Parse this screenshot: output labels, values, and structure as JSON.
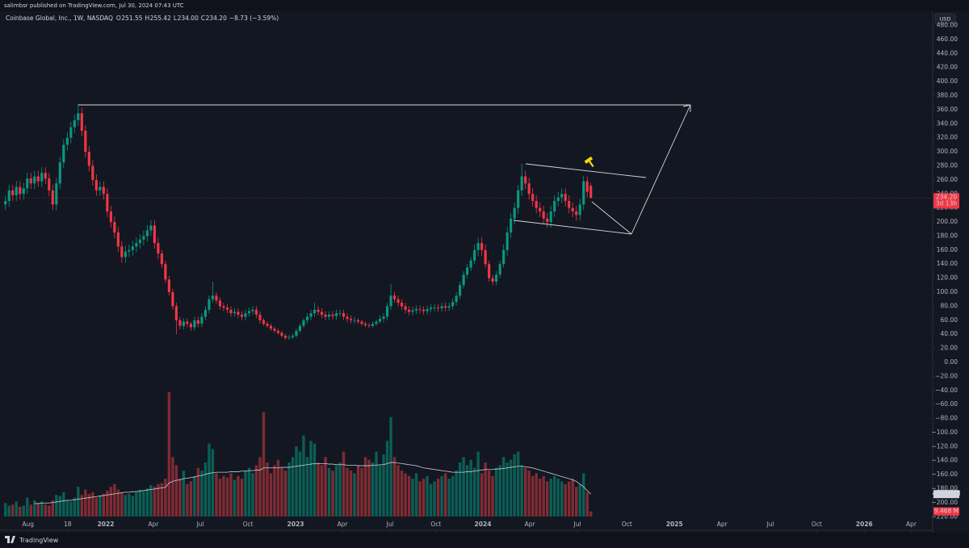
{
  "header": "salimbsr published on TradingView.com, Jul 30, 2024 07:43 UTC",
  "currency": "USD",
  "footer": "TradingView",
  "chart_data": {
    "type": "candlestick",
    "legend": {
      "symbol": "Coinbase Global, Inc., 1W, NASDAQ",
      "ohlc": [
        {
          "key": "O",
          "value": "251.55"
        },
        {
          "key": "H",
          "value": "255.42"
        },
        {
          "key": "L",
          "value": "234.00"
        },
        {
          "key": "C",
          "value": "234.20"
        }
      ],
      "change": "−8.73 (−3.59%)"
    },
    "xlim": [
      -1.5,
      255
    ],
    "xticks": [
      {
        "value": 6.2,
        "label": "Aug"
      },
      {
        "value": 17.1,
        "label": "18"
      },
      {
        "value": 27.6,
        "label": "2022"
      },
      {
        "value": 40.7,
        "label": "Apr"
      },
      {
        "value": 53.6,
        "label": "Jul"
      },
      {
        "value": 66.7,
        "label": "Oct"
      },
      {
        "value": 79.8,
        "label": "2023"
      },
      {
        "value": 92.7,
        "label": "Apr"
      },
      {
        "value": 105.8,
        "label": "Jul"
      },
      {
        "value": 118.4,
        "label": "Oct"
      },
      {
        "value": 131.3,
        "label": "2024"
      },
      {
        "value": 144.2,
        "label": "Apr"
      },
      {
        "value": 157.3,
        "label": "Jul"
      },
      {
        "value": 170.9,
        "label": "Oct"
      },
      {
        "value": 184,
        "label": "2025"
      },
      {
        "value": 197.1,
        "label": "Apr"
      },
      {
        "value": 210.4,
        "label": "Jul"
      },
      {
        "value": 223.1,
        "label": "Oct"
      },
      {
        "value": 236.2,
        "label": "2026"
      },
      {
        "value": 249.1,
        "label": "Apr"
      }
    ],
    "ylim": [
      -239.2,
      500.2
    ],
    "yticks": [
      {
        "value": -220,
        "label": "−220.00"
      },
      {
        "value": -200,
        "label": "−200.00"
      },
      {
        "value": -180,
        "label": "−180.00"
      },
      {
        "value": -160,
        "label": "−160.00"
      },
      {
        "value": -140,
        "label": "−140.00"
      },
      {
        "value": -120,
        "label": "−120.00"
      },
      {
        "value": -100,
        "label": "−100.00"
      },
      {
        "value": -80,
        "label": "−80.00"
      },
      {
        "value": -60,
        "label": "−60.00"
      },
      {
        "value": -40,
        "label": "−40.00"
      },
      {
        "value": -20,
        "label": "−20.00"
      },
      {
        "value": 0,
        "label": "0.00"
      },
      {
        "value": 20,
        "label": "20.00"
      },
      {
        "value": 40,
        "label": "40.00"
      },
      {
        "value": 60,
        "label": "60.00"
      },
      {
        "value": 80,
        "label": "80.00"
      },
      {
        "value": 100,
        "label": "100.00"
      },
      {
        "value": 120,
        "label": "120.00"
      },
      {
        "value": 140,
        "label": "140.00"
      },
      {
        "value": 160,
        "label": "160.00"
      },
      {
        "value": 180,
        "label": "180.00"
      },
      {
        "value": 200,
        "label": "200.00"
      },
      {
        "value": 220,
        "label": "220.00"
      },
      {
        "value": 240,
        "label": "240.00"
      },
      {
        "value": 260,
        "label": "260.00"
      },
      {
        "value": 280,
        "label": "280.00"
      },
      {
        "value": 300,
        "label": "300.00"
      },
      {
        "value": 320,
        "label": "320.00"
      },
      {
        "value": 340,
        "label": "340.00"
      },
      {
        "value": 360,
        "label": "360.00"
      },
      {
        "value": 380,
        "label": "380.00"
      },
      {
        "value": 400,
        "label": "400.00"
      },
      {
        "value": 420,
        "label": "420.00"
      },
      {
        "value": 440,
        "label": "440.00"
      },
      {
        "value": 460,
        "label": "460.00"
      },
      {
        "value": 480,
        "label": "480.00"
      }
    ],
    "grid": false,
    "up_color": "#089981",
    "down_color": "#f23645",
    "volume_up_color": "#0b5e55",
    "volume_down_color": "#802b33",
    "ma_color": "#c9cbd2",
    "candles": {
      "open": [
        225,
        230,
        245,
        238,
        250,
        240,
        248,
        262,
        255,
        265,
        258,
        270,
        262,
        245,
        225,
        255,
        285,
        310,
        320,
        335,
        345,
        355,
        330,
        300,
        280,
        260,
        245,
        250,
        240,
        215,
        200,
        185,
        165,
        150,
        158,
        160,
        165,
        170,
        175,
        180,
        188,
        195,
        170,
        155,
        140,
        118,
        100,
        80,
        60,
        52,
        58,
        55,
        50,
        60,
        55,
        65,
        75,
        90,
        95,
        88,
        80,
        78,
        75,
        70,
        72,
        68,
        65,
        70,
        73,
        75,
        68,
        60,
        55,
        52,
        48,
        45,
        42,
        38,
        35,
        36,
        38,
        45,
        52,
        60,
        65,
        70,
        75,
        72,
        68,
        65,
        68,
        66,
        70,
        70,
        65,
        62,
        60,
        60,
        58,
        55,
        53,
        52,
        55,
        58,
        62,
        65,
        80,
        95,
        90,
        85,
        80,
        75,
        72,
        74,
        76,
        75,
        73,
        76,
        78,
        78,
        77,
        80,
        78,
        80,
        86,
        95,
        110,
        125,
        135,
        145,
        160,
        170,
        160,
        140,
        120,
        115,
        125,
        140,
        160,
        185,
        205,
        220,
        245,
        265,
        255,
        240,
        230,
        220,
        215,
        205,
        200,
        215,
        230,
        235,
        240,
        230,
        220,
        215,
        210,
        225,
        258,
        251.55
      ],
      "high": [
        238,
        253,
        253,
        258,
        258,
        256,
        270,
        270,
        273,
        273,
        278,
        278,
        270,
        253,
        263,
        293,
        318,
        328,
        343,
        353,
        368,
        363,
        338,
        308,
        288,
        268,
        258,
        258,
        248,
        223,
        208,
        193,
        173,
        166,
        168,
        173,
        178,
        183,
        188,
        196,
        203,
        203,
        178,
        160,
        145,
        123,
        105,
        85,
        65,
        63,
        63,
        58,
        65,
        65,
        70,
        80,
        95,
        115,
        100,
        93,
        85,
        83,
        80,
        77,
        77,
        73,
        75,
        78,
        80,
        80,
        73,
        63,
        58,
        55,
        51,
        48,
        45,
        41,
        39,
        41,
        48,
        55,
        63,
        70,
        75,
        85,
        80,
        77,
        73,
        73,
        73,
        75,
        75,
        75,
        70,
        67,
        65,
        63,
        61,
        58,
        56,
        58,
        61,
        67,
        70,
        85,
        112,
        100,
        95,
        90,
        85,
        80,
        79,
        81,
        81,
        80,
        81,
        83,
        83,
        83,
        85,
        85,
        85,
        91,
        100,
        115,
        130,
        140,
        150,
        168,
        178,
        178,
        168,
        145,
        125,
        130,
        145,
        168,
        193,
        213,
        228,
        253,
        283,
        273,
        263,
        248,
        238,
        228,
        223,
        213,
        223,
        238,
        243,
        248,
        248,
        238,
        228,
        223,
        233,
        266,
        265,
        255.42
      ],
      "low": [
        217,
        222,
        230,
        230,
        232,
        232,
        240,
        247,
        247,
        250,
        250,
        254,
        237,
        217,
        217,
        247,
        277,
        302,
        312,
        327,
        337,
        322,
        292,
        272,
        252,
        237,
        237,
        232,
        207,
        192,
        177,
        157,
        142,
        142,
        150,
        152,
        157,
        162,
        167,
        172,
        180,
        162,
        147,
        135,
        113,
        95,
        75,
        40,
        47,
        47,
        50,
        45,
        45,
        50,
        50,
        60,
        70,
        85,
        83,
        75,
        73,
        70,
        65,
        65,
        63,
        60,
        60,
        65,
        68,
        63,
        55,
        52,
        49,
        45,
        42,
        39,
        35,
        32,
        32,
        33,
        35,
        42,
        49,
        55,
        60,
        65,
        67,
        63,
        60,
        60,
        61,
        61,
        65,
        60,
        57,
        55,
        55,
        55,
        52,
        50,
        49,
        49,
        52,
        55,
        57,
        60,
        75,
        85,
        80,
        75,
        70,
        67,
        67,
        69,
        70,
        68,
        68,
        71,
        73,
        72,
        72,
        73,
        73,
        75,
        81,
        90,
        105,
        120,
        130,
        140,
        152,
        152,
        135,
        115,
        110,
        110,
        120,
        135,
        152,
        177,
        197,
        212,
        237,
        247,
        232,
        222,
        212,
        207,
        197,
        192,
        192,
        207,
        222,
        227,
        222,
        212,
        207,
        202,
        202,
        217,
        235,
        234
      ],
      "close": [
        230,
        245,
        238,
        250,
        240,
        248,
        262,
        255,
        265,
        258,
        270,
        262,
        245,
        225,
        255,
        285,
        310,
        320,
        335,
        345,
        355,
        330,
        300,
        280,
        260,
        245,
        250,
        240,
        215,
        200,
        185,
        165,
        150,
        158,
        160,
        165,
        170,
        175,
        180,
        188,
        195,
        170,
        155,
        140,
        118,
        100,
        80,
        60,
        52,
        58,
        55,
        50,
        60,
        55,
        65,
        75,
        90,
        95,
        88,
        80,
        78,
        75,
        70,
        72,
        68,
        65,
        70,
        73,
        75,
        68,
        60,
        55,
        52,
        48,
        45,
        42,
        38,
        35,
        36,
        38,
        45,
        52,
        60,
        65,
        70,
        75,
        72,
        68,
        65,
        68,
        66,
        70,
        70,
        65,
        62,
        60,
        60,
        58,
        55,
        53,
        52,
        55,
        58,
        62,
        65,
        80,
        95,
        90,
        85,
        80,
        75,
        72,
        74,
        76,
        75,
        73,
        76,
        78,
        78,
        77,
        80,
        78,
        80,
        86,
        95,
        110,
        125,
        135,
        145,
        160,
        170,
        160,
        140,
        120,
        115,
        125,
        140,
        160,
        185,
        205,
        220,
        245,
        265,
        255,
        240,
        230,
        220,
        215,
        205,
        200,
        215,
        230,
        235,
        240,
        230,
        220,
        215,
        210,
        225,
        258,
        242.93,
        234.2
      ]
    },
    "last_price_label": {
      "price": "234.20",
      "countdown": "3d 13h"
    },
    "volume_ylim": [
      0,
      230
    ],
    "volume": {
      "values": [
        25,
        20,
        22,
        28,
        18,
        20,
        35,
        22,
        30,
        25,
        28,
        22,
        20,
        30,
        40,
        38,
        45,
        30,
        28,
        35,
        55,
        40,
        50,
        42,
        45,
        35,
        38,
        42,
        48,
        55,
        60,
        50,
        45,
        40,
        42,
        38,
        45,
        50,
        48,
        52,
        58,
        55,
        60,
        62,
        70,
        230,
        110,
        95,
        70,
        85,
        60,
        65,
        75,
        90,
        85,
        100,
        135,
        125,
        80,
        70,
        75,
        72,
        80,
        68,
        75,
        70,
        85,
        90,
        80,
        95,
        110,
        193,
        100,
        80,
        95,
        105,
        90,
        85,
        100,
        110,
        130,
        120,
        150,
        110,
        140,
        135,
        100,
        95,
        110,
        90,
        85,
        95,
        100,
        120,
        90,
        85,
        80,
        95,
        90,
        110,
        105,
        100,
        120,
        95,
        115,
        140,
        184,
        110,
        95,
        85,
        80,
        75,
        70,
        80,
        65,
        70,
        75,
        60,
        65,
        70,
        75,
        80,
        70,
        75,
        85,
        100,
        110,
        95,
        105,
        90,
        120,
        80,
        100,
        85,
        75,
        90,
        95,
        110,
        100,
        105,
        115,
        120,
        95,
        90,
        85,
        75,
        80,
        70,
        75,
        65,
        70,
        75,
        70,
        65,
        60,
        65,
        70,
        55,
        60,
        80,
        45,
        9.468
      ],
      "ma": [
        null,
        null,
        null,
        null,
        null,
        null,
        null,
        null,
        24,
        24,
        25,
        25,
        25,
        26,
        27,
        28,
        29,
        30,
        30,
        31,
        32,
        33,
        34,
        35,
        36,
        37,
        38,
        39,
        40,
        41,
        42,
        43,
        44,
        45,
        45,
        46,
        46,
        47,
        48,
        49,
        50,
        51,
        52,
        53,
        54,
        62,
        65,
        67,
        68,
        70,
        71,
        72,
        73,
        75,
        76,
        78,
        80,
        81,
        82,
        82,
        82,
        82,
        83,
        83,
        83,
        84,
        84,
        85,
        85,
        86,
        86,
        90,
        90,
        90,
        90,
        90,
        91,
        91,
        91,
        92,
        93,
        94,
        95,
        96,
        97,
        98,
        98,
        98,
        98,
        97,
        97,
        96,
        96,
        96,
        95,
        95,
        95,
        94,
        94,
        94,
        94,
        95,
        95,
        96,
        96,
        98,
        100,
        100,
        99,
        98,
        97,
        96,
        95,
        94,
        92,
        90,
        89,
        88,
        87,
        86,
        85,
        84,
        83,
        82,
        82,
        82,
        82,
        83,
        83,
        84,
        85,
        86,
        87,
        87,
        87,
        88,
        88,
        89,
        90,
        91,
        92,
        93,
        93,
        92,
        91,
        90,
        88,
        86,
        84,
        82,
        80,
        78,
        76,
        74,
        72,
        70,
        68,
        65,
        60,
        55,
        48,
        41.459
      ],
      "ma_label": "41.459 M",
      "last_label": "9.468 M"
    }
  }
}
